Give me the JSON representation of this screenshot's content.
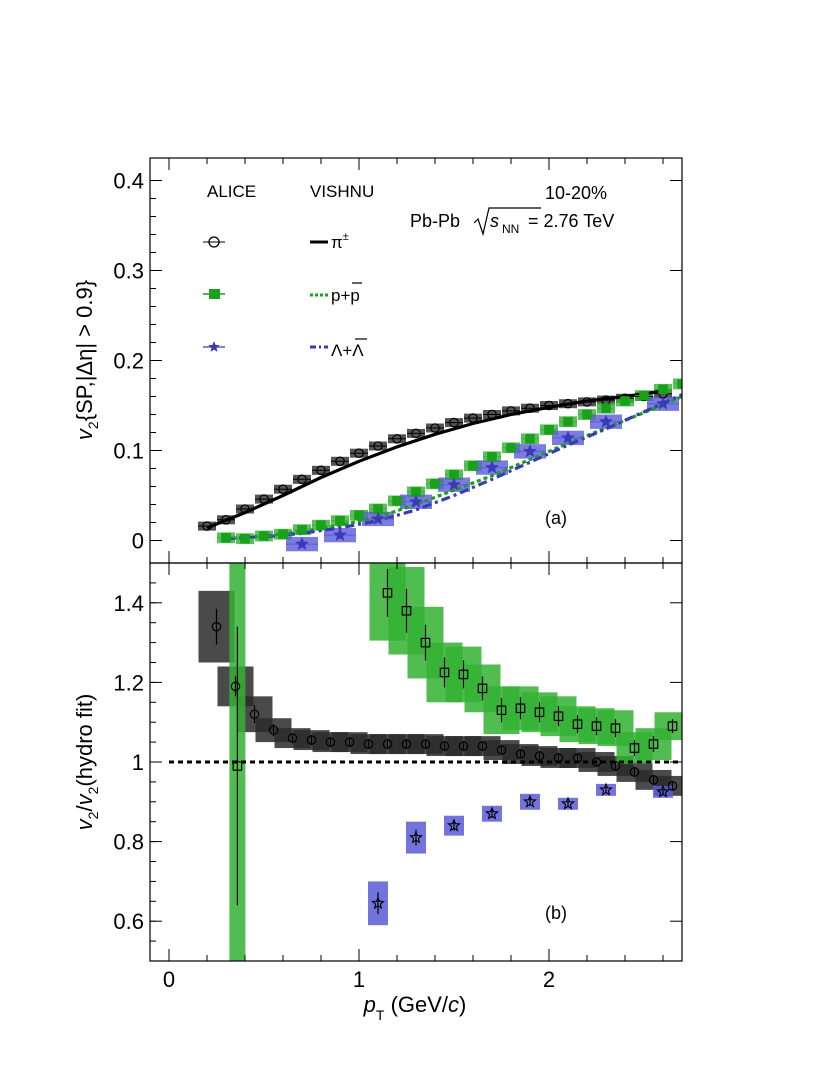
{
  "chart_data": [
    {
      "id": "panel_a",
      "type": "scatter",
      "panel_label": "(a)",
      "xlabel": "p_T (GeV/c)",
      "ylabel": "v_2{SP,|Δη| > 0.9}",
      "xlim": [
        -0.1,
        2.7
      ],
      "ylim": [
        -0.025,
        0.425
      ],
      "y_ticks": [
        "0",
        "0.1",
        "0.2",
        "0.3",
        "0.4"
      ],
      "annotations": {
        "centrality": "10-20%",
        "system": "Pb-Pb",
        "energy": "= 2.76 TeV"
      },
      "legend": {
        "header_left": "ALICE",
        "header_right": "VISHNU",
        "entries": [
          {
            "data": "",
            "model": "π",
            "model_sup": "±"
          },
          {
            "data": "",
            "model": "p+p"
          },
          {
            "data": "",
            "model": "Λ+Λ"
          }
        ]
      },
      "series": [
        {
          "name": "π± ALICE",
          "marker": "open-circle",
          "color": "#000000",
          "band_color": "#2a2a2a",
          "x": [
            0.2,
            0.3,
            0.4,
            0.5,
            0.6,
            0.7,
            0.8,
            0.9,
            1.0,
            1.1,
            1.2,
            1.3,
            1.4,
            1.5,
            1.6,
            1.7,
            1.8,
            1.9,
            2.0,
            2.1,
            2.2,
            2.3,
            2.4,
            2.5,
            2.6
          ],
          "y": [
            0.016,
            0.023,
            0.035,
            0.046,
            0.057,
            0.068,
            0.078,
            0.088,
            0.097,
            0.105,
            0.113,
            0.119,
            0.125,
            0.131,
            0.136,
            0.14,
            0.144,
            0.147,
            0.15,
            0.152,
            0.154,
            0.156,
            0.158,
            0.16,
            0.163
          ]
        },
        {
          "name": "p+p ALICE",
          "marker": "open-square",
          "color": "#000000",
          "band_color": "#33b233",
          "x": [
            0.3,
            0.4,
            0.5,
            0.6,
            0.7,
            0.8,
            0.9,
            1.0,
            1.1,
            1.2,
            1.3,
            1.4,
            1.5,
            1.6,
            1.7,
            1.8,
            1.9,
            2.0,
            2.1,
            2.2,
            2.3,
            2.4,
            2.5,
            2.6,
            2.7
          ],
          "y": [
            0.003,
            0.002,
            0.005,
            0.007,
            0.012,
            0.017,
            0.022,
            0.028,
            0.035,
            0.044,
            0.054,
            0.063,
            0.073,
            0.083,
            0.093,
            0.103,
            0.113,
            0.123,
            0.132,
            0.14,
            0.147,
            0.155,
            0.161,
            0.168,
            0.174
          ]
        },
        {
          "name": "Λ+Λ ALICE",
          "marker": "open-star",
          "color": "#000000",
          "band_color": "#5a5ad8",
          "x": [
            0.7,
            0.9,
            1.1,
            1.3,
            1.5,
            1.7,
            1.9,
            2.1,
            2.3,
            2.6
          ],
          "y": [
            -0.004,
            0.006,
            0.024,
            0.043,
            0.062,
            0.081,
            0.099,
            0.114,
            0.132,
            0.152
          ]
        }
      ],
      "model_curves": [
        {
          "name": "π± VISHNU",
          "style": "solid",
          "color": "#000000",
          "x": [
            0.2,
            0.4,
            0.6,
            0.8,
            1.0,
            1.2,
            1.4,
            1.6,
            1.8,
            2.0,
            2.2,
            2.4,
            2.6
          ],
          "y": [
            0.014,
            0.031,
            0.05,
            0.07,
            0.088,
            0.104,
            0.118,
            0.13,
            0.14,
            0.148,
            0.155,
            0.16,
            0.166
          ]
        },
        {
          "name": "p+p VISHNU",
          "style": "dotted",
          "color": "#1aa01a",
          "x": [
            0.3,
            0.5,
            0.7,
            0.9,
            1.1,
            1.3,
            1.5,
            1.7,
            1.9,
            2.1,
            2.3,
            2.5,
            2.7
          ],
          "y": [
            0.002,
            0.005,
            0.01,
            0.017,
            0.026,
            0.04,
            0.056,
            0.072,
            0.09,
            0.108,
            0.125,
            0.142,
            0.16
          ]
        },
        {
          "name": "Λ+Λ VISHNU",
          "style": "dash-dot",
          "color": "#3a3ab8",
          "x": [
            0.3,
            0.5,
            0.7,
            0.9,
            1.1,
            1.3,
            1.5,
            1.7,
            1.9,
            2.1,
            2.3,
            2.5,
            2.7
          ],
          "y": [
            0.002,
            0.004,
            0.008,
            0.014,
            0.022,
            0.034,
            0.05,
            0.068,
            0.087,
            0.106,
            0.124,
            0.143,
            0.162
          ]
        }
      ]
    },
    {
      "id": "panel_b",
      "type": "scatter",
      "panel_label": "(b)",
      "xlabel": "p_T (GeV/c)",
      "ylabel": "v_2/v_2(hydro fit)",
      "xlim": [
        -0.1,
        2.7
      ],
      "ylim": [
        0.5,
        1.5
      ],
      "x_ticks": [
        "0",
        "1",
        "2"
      ],
      "y_ticks": [
        "0.6",
        "0.8",
        "1",
        "1.2",
        "1.4"
      ],
      "reference_line": 1.0,
      "series": [
        {
          "name": "π± ratio",
          "marker": "open-circle",
          "color": "#000000",
          "band_color": "#2a2a2a",
          "x": [
            0.25,
            0.35,
            0.45,
            0.55,
            0.65,
            0.75,
            0.85,
            0.95,
            1.05,
            1.15,
            1.25,
            1.35,
            1.45,
            1.55,
            1.65,
            1.75,
            1.85,
            1.95,
            2.05,
            2.15,
            2.25,
            2.35,
            2.45,
            2.55,
            2.65
          ],
          "y": [
            1.34,
            1.19,
            1.12,
            1.08,
            1.06,
            1.055,
            1.05,
            1.05,
            1.045,
            1.045,
            1.045,
            1.045,
            1.04,
            1.04,
            1.04,
            1.03,
            1.02,
            1.015,
            1.01,
            1.01,
            1.0,
            0.99,
            0.975,
            0.955,
            0.94
          ],
          "band_half": [
            0.09,
            0.05,
            0.045,
            0.03,
            0.025,
            0.025,
            0.025,
            0.025,
            0.025,
            0.025,
            0.025,
            0.025,
            0.025,
            0.025,
            0.025,
            0.025,
            0.025,
            0.025,
            0.025,
            0.025,
            0.025,
            0.025,
            0.025,
            0.025,
            0.025
          ]
        },
        {
          "name": "p+p ratio",
          "marker": "open-square",
          "color": "#000000",
          "band_color": "#33b233",
          "x": [
            0.36,
            1.15,
            1.25,
            1.35,
            1.45,
            1.55,
            1.65,
            1.75,
            1.85,
            1.95,
            2.05,
            2.15,
            2.25,
            2.35,
            2.45,
            2.55,
            2.65
          ],
          "y": [
            0.99,
            1.425,
            1.38,
            1.3,
            1.225,
            1.22,
            1.185,
            1.13,
            1.135,
            1.125,
            1.115,
            1.095,
            1.09,
            1.085,
            1.035,
            1.045,
            1.09
          ],
          "band_half": [
            0.7,
            0.12,
            0.11,
            0.09,
            0.075,
            0.07,
            0.06,
            0.06,
            0.055,
            0.05,
            0.05,
            0.045,
            0.045,
            0.045,
            0.04,
            0.04,
            0.035
          ]
        },
        {
          "name": "Λ+Λ ratio",
          "marker": "open-star",
          "color": "#000000",
          "band_color": "#5a5ad8",
          "x": [
            1.1,
            1.3,
            1.5,
            1.7,
            1.9,
            2.1,
            2.3,
            2.6
          ],
          "y": [
            0.645,
            0.81,
            0.84,
            0.87,
            0.9,
            0.895,
            0.93,
            0.925
          ],
          "band_half": [
            0.055,
            0.04,
            0.025,
            0.02,
            0.02,
            0.015,
            0.015,
            0.015
          ]
        }
      ]
    }
  ]
}
